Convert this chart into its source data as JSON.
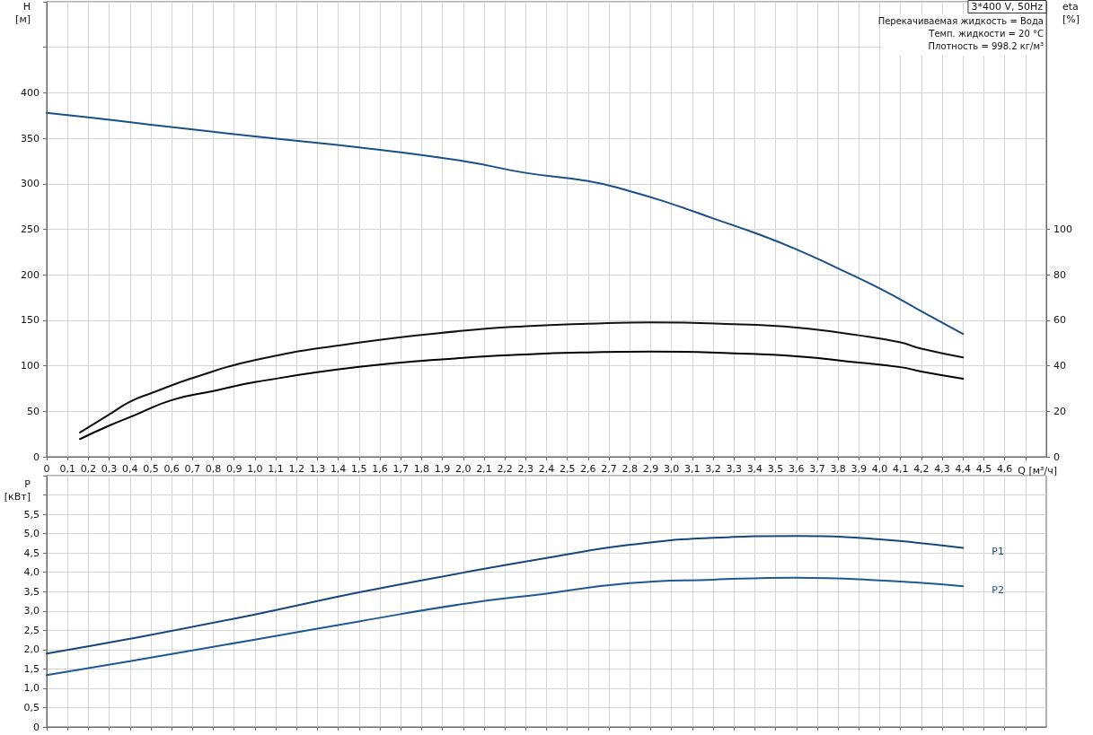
{
  "chart_data": [
    {
      "type": "line",
      "title": "3*400 V, 50Hz",
      "xlabel": "Q [м³/ч]",
      "ylabel": "H\n[м]",
      "y2label": "eta\n[%]",
      "annotations": [
        "Перекачиваемая жидкость = Вода",
        "Темп. жидкости = 20 °C",
        "Плотность = 998.2 кг/м³"
      ],
      "xlim": [
        0,
        4.8
      ],
      "xticks": [
        0,
        {
          "value": 0.1,
          "label": "0,1"
        },
        {
          "value": 0.2,
          "label": "0,2"
        },
        {
          "value": 0.3,
          "label": "0,3"
        },
        {
          "value": 0.4,
          "label": "0,4"
        },
        {
          "value": 0.5,
          "label": "0,5"
        },
        {
          "value": 0.6,
          "label": "0,6"
        },
        {
          "value": 0.7,
          "label": "0,7"
        },
        {
          "value": 0.8,
          "label": "0,8"
        },
        {
          "value": 0.9,
          "label": "0,9"
        },
        {
          "value": 1,
          "label": "1,0"
        },
        {
          "value": 1.1,
          "label": "1,1"
        },
        {
          "value": 1.2,
          "label": "1,2"
        },
        {
          "value": 1.3,
          "label": "1,3"
        },
        {
          "value": 1.4,
          "label": "1,4"
        },
        {
          "value": 1.5,
          "label": "1,5"
        },
        {
          "value": 1.6,
          "label": "1,6"
        },
        {
          "value": 1.7,
          "label": "1,7"
        },
        {
          "value": 1.8,
          "label": "1,8"
        },
        {
          "value": 1.9,
          "label": "1,9"
        },
        {
          "value": 2,
          "label": "2,0"
        },
        {
          "value": 2.1,
          "label": "2,1"
        },
        {
          "value": 2.2,
          "label": "2,2"
        },
        {
          "value": 2.3,
          "label": "2,3"
        },
        {
          "value": 2.4,
          "label": "2,4"
        },
        {
          "value": 2.5,
          "label": "2,5"
        },
        {
          "value": 2.6,
          "label": "2,6"
        },
        {
          "value": 2.7,
          "label": "2,7"
        },
        {
          "value": 2.8,
          "label": "2,8"
        },
        {
          "value": 2.9,
          "label": "2,9"
        },
        {
          "value": 3,
          "label": "3,0"
        },
        {
          "value": 3.1,
          "label": "3,1"
        },
        {
          "value": 3.2,
          "label": "3,2"
        },
        {
          "value": 3.3,
          "label": "3,3"
        },
        {
          "value": 3.4,
          "label": "3,4"
        },
        {
          "value": 3.5,
          "label": "3,5"
        },
        {
          "value": 3.6,
          "label": "3,6"
        },
        {
          "value": 3.7,
          "label": "3,7"
        },
        {
          "value": 3.8,
          "label": "3,8"
        },
        {
          "value": 3.9,
          "label": "3,9"
        },
        {
          "value": 4,
          "label": "4,0"
        },
        {
          "value": 4.1,
          "label": "4,1"
        },
        {
          "value": 4.2,
          "label": "4,2"
        },
        {
          "value": 4.3,
          "label": "4,3"
        },
        {
          "value": 4.4,
          "label": "4,4"
        },
        {
          "value": 4.5,
          "label": "4,5"
        },
        {
          "value": 4.6,
          "label": "4,6"
        },
        {
          "value": 4.7,
          "label": null
        }
      ],
      "ylim": [
        0,
        500
      ],
      "yticks": [
        0,
        50,
        100,
        150,
        200,
        250,
        300,
        350,
        400,
        {
          "value": 450,
          "label": null
        },
        {
          "value": 500,
          "label": null
        }
      ],
      "y2lim": [
        0,
        200
      ],
      "y2ticks": [
        0,
        20,
        40,
        60,
        80,
        100
      ],
      "grid": true,
      "legend": false,
      "marker": "none",
      "line_style": "solid",
      "series": [
        {
          "color": "#1a4f8a",
          "x": [
            0,
            0.2,
            0.5,
            1.0,
            1.5,
            2.0,
            2.3,
            2.6,
            2.8,
            3.0,
            3.2,
            3.4,
            3.6,
            3.8,
            4.0,
            4.2,
            4.4
          ],
          "values": [
            378,
            373,
            365,
            352,
            340,
            325,
            312,
            303,
            292,
            278,
            262,
            246,
            228,
            207,
            185,
            160,
            135
          ]
        },
        {
          "color": "#111111",
          "axis": "y2",
          "x": [
            0.16,
            0.3,
            0.4,
            0.5,
            0.7,
            1.0,
            1.5,
            2.0,
            2.3,
            2.6,
            2.9,
            3.3,
            3.6,
            3.9,
            4.1,
            4.2,
            4.4
          ],
          "values": [
            10.7,
            18.6,
            24.2,
            27.9,
            34.6,
            42.5,
            50.2,
            55.4,
            57.4,
            58.5,
            59.1,
            58.3,
            56.8,
            53.4,
            50.3,
            47.5,
            43.7
          ]
        },
        {
          "color": "#000000",
          "axis": "y2",
          "x": [
            0.16,
            0.3,
            0.42,
            0.6,
            0.8,
            1.0,
            1.5,
            2.0,
            2.3,
            2.6,
            2.9,
            3.3,
            3.6,
            3.9,
            4.1,
            4.2,
            4.4
          ],
          "values": [
            7.8,
            13.7,
            18.2,
            24.9,
            28.9,
            32.8,
            39.5,
            43.5,
            45,
            45.9,
            46.3,
            45.5,
            44.2,
            41.4,
            39.4,
            37.5,
            34.3
          ]
        }
      ]
    },
    {
      "type": "line",
      "ylabel": "P\n[кВт]",
      "tick_labels": "y",
      "xlim": [
        0,
        4.8
      ],
      "xticks": [
        0,
        0.1,
        0.2,
        0.3,
        0.4,
        0.5,
        0.6,
        0.7,
        0.8,
        0.9,
        1,
        1.1,
        1.2,
        1.3,
        1.4,
        1.5,
        1.6,
        1.7,
        1.8,
        1.9,
        2,
        2.1,
        2.2,
        2.3,
        2.4,
        2.5,
        2.6,
        2.7,
        2.8,
        2.9,
        3,
        3.1,
        3.2,
        3.3,
        3.4,
        3.5,
        3.6,
        3.7,
        3.8,
        3.9,
        4,
        4.1,
        4.2,
        4.3,
        4.4,
        4.5,
        4.6,
        4.7
      ],
      "ylim": [
        0,
        6.5
      ],
      "yticks": [
        0,
        {
          "value": 0.5,
          "label": "0,5"
        },
        {
          "value": 1,
          "label": "1,0"
        },
        {
          "value": 1.5,
          "label": "1,5"
        },
        {
          "value": 2,
          "label": "2,0"
        },
        {
          "value": 2.5,
          "label": "2,5"
        },
        {
          "value": 3,
          "label": "3,0"
        },
        {
          "value": 3.5,
          "label": "3,5"
        },
        {
          "value": 4,
          "label": "4,0"
        },
        {
          "value": 4.5,
          "label": "4,5"
        },
        {
          "value": 5,
          "label": "5,0"
        },
        {
          "value": 5.5,
          "label": "5,5"
        },
        {
          "value": 6,
          "label": null
        },
        {
          "value": 6.5,
          "label": null
        }
      ],
      "grid": true,
      "legend": false,
      "marker": "none",
      "line_style": "solid",
      "series": [
        {
          "name": "P1",
          "color": "#17467e",
          "x": [
            0,
            0.4,
            1.0,
            1.5,
            2.0,
            2.4,
            2.8,
            3.2,
            3.6,
            4.0,
            4.4
          ],
          "values": [
            1.9,
            2.28,
            2.91,
            3.48,
            3.99,
            4.37,
            4.71,
            4.89,
            4.94,
            4.85,
            4.63
          ]
        },
        {
          "name": "P2",
          "color": "#1f5894",
          "x": [
            0,
            0.4,
            1.0,
            1.5,
            2.0,
            2.4,
            2.8,
            3.2,
            3.6,
            4.0,
            4.4
          ],
          "values": [
            1.34,
            1.7,
            2.26,
            2.73,
            3.18,
            3.45,
            3.72,
            3.81,
            3.86,
            3.79,
            3.64
          ]
        }
      ]
    }
  ]
}
